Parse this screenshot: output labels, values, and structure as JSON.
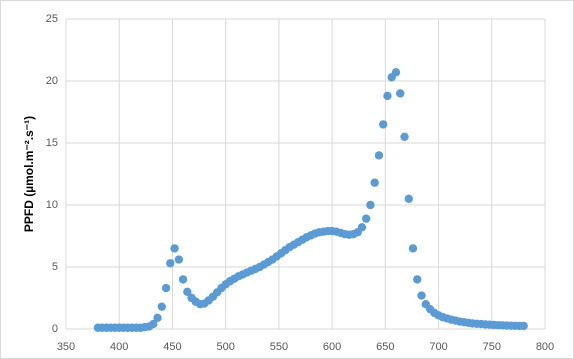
{
  "chart_data": {
    "type": "scatter",
    "y_label": "PPFD (µmol.m⁻².s⁻¹)",
    "color": "#5b9bd5",
    "grid": true,
    "xlim": [
      350,
      800
    ],
    "xticks": [
      350,
      400,
      450,
      500,
      550,
      600,
      650,
      700,
      750,
      800
    ],
    "ylim": [
      0,
      25
    ],
    "yticks": [
      0,
      5,
      10,
      15,
      20,
      25
    ],
    "x": [
      380,
      384,
      388,
      392,
      396,
      400,
      404,
      408,
      412,
      416,
      420,
      424,
      428,
      432,
      436,
      440,
      444,
      448,
      452,
      456,
      460,
      464,
      468,
      472,
      476,
      480,
      484,
      488,
      492,
      496,
      500,
      504,
      508,
      512,
      516,
      520,
      524,
      528,
      532,
      536,
      540,
      544,
      548,
      552,
      556,
      560,
      564,
      568,
      572,
      576,
      580,
      584,
      588,
      592,
      596,
      600,
      604,
      608,
      612,
      616,
      620,
      624,
      628,
      632,
      636,
      640,
      644,
      648,
      652,
      656,
      660,
      664,
      668,
      672,
      676,
      680,
      684,
      688,
      692,
      696,
      700,
      704,
      708,
      712,
      716,
      720,
      724,
      728,
      732,
      736,
      740,
      744,
      748,
      752,
      756,
      760,
      764,
      768,
      772,
      776,
      780
    ],
    "values": [
      0.1,
      0.1,
      0.1,
      0.1,
      0.1,
      0.1,
      0.1,
      0.1,
      0.1,
      0.1,
      0.1,
      0.15,
      0.2,
      0.4,
      0.9,
      1.8,
      3.3,
      5.3,
      6.5,
      5.6,
      4.0,
      3.0,
      2.5,
      2.2,
      2.0,
      2.05,
      2.3,
      2.6,
      2.95,
      3.3,
      3.6,
      3.85,
      4.05,
      4.25,
      4.4,
      4.55,
      4.7,
      4.85,
      5.0,
      5.2,
      5.4,
      5.6,
      5.85,
      6.1,
      6.35,
      6.6,
      6.8,
      7.0,
      7.2,
      7.4,
      7.55,
      7.7,
      7.8,
      7.85,
      7.9,
      7.9,
      7.85,
      7.75,
      7.65,
      7.6,
      7.65,
      7.8,
      8.2,
      8.9,
      10.0,
      11.8,
      14.0,
      16.5,
      18.8,
      20.3,
      20.7,
      19.0,
      15.5,
      10.5,
      6.5,
      4.0,
      2.7,
      2.0,
      1.6,
      1.3,
      1.1,
      0.95,
      0.85,
      0.75,
      0.68,
      0.6,
      0.55,
      0.5,
      0.45,
      0.42,
      0.4,
      0.37,
      0.35,
      0.33,
      0.31,
      0.3,
      0.28,
      0.27,
      0.26,
      0.25,
      0.25
    ]
  }
}
